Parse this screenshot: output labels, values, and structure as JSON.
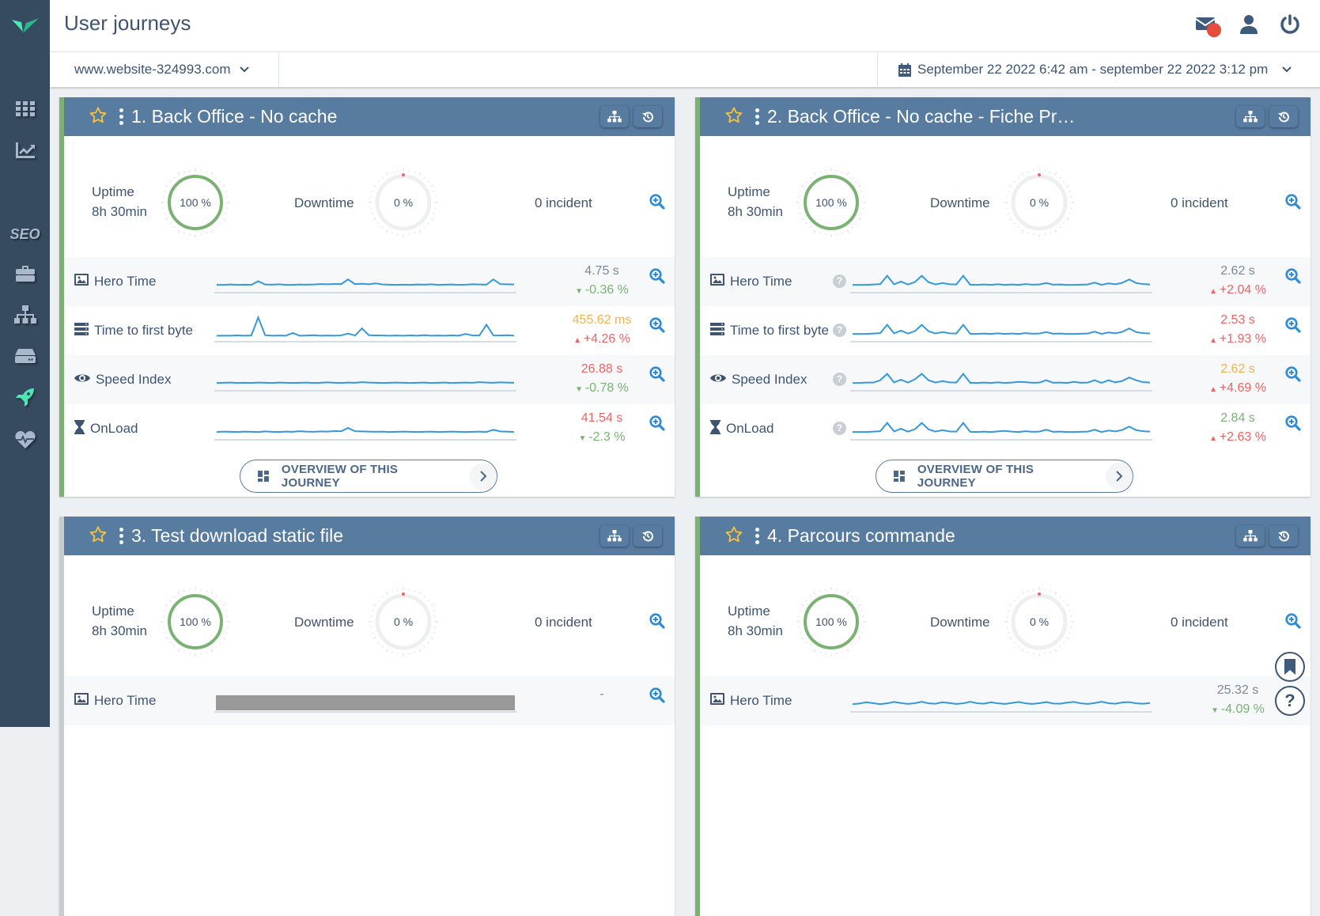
{
  "header": {
    "title": "User journeys",
    "icons": [
      "mail-icon",
      "user-icon",
      "power-icon"
    ],
    "notification_dot_color": "#e74c3c"
  },
  "subbar": {
    "site": "www.website-324993.com",
    "date_range": "September 22 2022 6:42 am - september 22 2022 3:12 pm"
  },
  "sidebar": {
    "items": [
      "grid-icon",
      "chart-icon",
      "SEO",
      "briefcase-icon",
      "sitemap-icon",
      "server-icon",
      "rocket-icon",
      "heartbeat-icon"
    ],
    "active": "rocket-icon",
    "active_color": "#4de8b5"
  },
  "colors": {
    "good": "#7bb274",
    "bad": "#f06363",
    "warn": "#f5b150",
    "neutral": "#7d8896",
    "header": "#587ba0"
  },
  "labels": {
    "uptime": "Uptime",
    "downtime": "Downtime",
    "overview": "OVERVIEW OF THIS JOURNEY"
  },
  "cards": [
    {
      "title": "1. Back Office - No cache",
      "status": "good",
      "uptime_duration": "8h 30min",
      "uptime_pct": "100 %",
      "downtime_pct": "0 %",
      "incidents": "0 incident",
      "overview": true,
      "help": false,
      "metrics": [
        {
          "icon": "image-icon",
          "label": "Hero Time",
          "value": "4.75 s",
          "value_status": "neutral",
          "change": "-0.36 %",
          "trend": "down",
          "change_status": "good",
          "spark": [
            3,
            3,
            3.2,
            3,
            3.1,
            3,
            5,
            3.2,
            3.1,
            3.3,
            3,
            3,
            3.2,
            3.1,
            3.2,
            3.4,
            3.3,
            3.5,
            3.4,
            6,
            3.4,
            3.6,
            3.3,
            3.8,
            3.2,
            3.1,
            3,
            3.1,
            3,
            3.2,
            3.1,
            3.3,
            3,
            3.1,
            3.2,
            3,
            3.1,
            3.3,
            3.2,
            3.1,
            6,
            3.4,
            3.3,
            3.2
          ]
        },
        {
          "icon": "server-icon",
          "label": "Time to first byte",
          "value": "455.62 ms",
          "value_status": "warn",
          "change": "+4.26 %",
          "trend": "up",
          "change_status": "bad",
          "spark": [
            2,
            2,
            2,
            2.2,
            2,
            2.1,
            12,
            2.3,
            2,
            2.1,
            2,
            3.5,
            2,
            2.1,
            2.3,
            2,
            2.1,
            2,
            2.2,
            3.2,
            2.1,
            6,
            2.3,
            2.2,
            2.1,
            2,
            2.1,
            2,
            2.2,
            2,
            2.3,
            2,
            2.1,
            2,
            2.2,
            2,
            3,
            2.1,
            2.2,
            8,
            2.2,
            2.1,
            2.3,
            2
          ]
        },
        {
          "icon": "eye-icon",
          "label": "Speed Index",
          "value": "26.88 s",
          "value_status": "bad",
          "change": "-0.78 %",
          "trend": "down",
          "change_status": "good",
          "spark": [
            3,
            3.1,
            3.2,
            3,
            3.1,
            3,
            3.2,
            3.1,
            3,
            3.2,
            3.1,
            3,
            3.1,
            3.2,
            3,
            3.1,
            3.3,
            3.1,
            3,
            3.2,
            3.1,
            3.4,
            3.2,
            3.1,
            3,
            3.1,
            3.2,
            3.1,
            3,
            3.1,
            3.2,
            3,
            3.1,
            3.2,
            3,
            3.1,
            3.2,
            3.1,
            3.4,
            3.2,
            3.1,
            3.3,
            3.2,
            3.1
          ]
        },
        {
          "icon": "hourglass-icon",
          "label": "OnLoad",
          "value": "41.54 s",
          "value_status": "bad",
          "change": "-2.3 %",
          "trend": "down",
          "change_status": "good",
          "spark": [
            3,
            3.2,
            3.1,
            3,
            3.2,
            3.1,
            3,
            3.3,
            3.1,
            3,
            3.2,
            3.1,
            3.4,
            3.2,
            3.1,
            3.3,
            3.2,
            3.5,
            3.4,
            5.2,
            3.4,
            3.3,
            3.2,
            3.1,
            3.2,
            3,
            3.1,
            3.2,
            3.1,
            3,
            3.1,
            3.2,
            3,
            3.1,
            3.2,
            3.1,
            3,
            3.1,
            3.2,
            3,
            4.2,
            3.3,
            3.2,
            3
          ]
        }
      ]
    },
    {
      "title": "2. Back Office - No cache - Fiche Pr…",
      "status": "good",
      "uptime_duration": "8h 30min",
      "uptime_pct": "100 %",
      "downtime_pct": "0 %",
      "incidents": "0 incident",
      "overview": true,
      "help": true,
      "metrics": [
        {
          "icon": "image-icon",
          "label": "Hero Time",
          "value": "2.62 s",
          "value_status": "neutral",
          "change": "+2.04 %",
          "trend": "up",
          "change_status": "bad",
          "spark": [
            3,
            3,
            3,
            3.2,
            3.4,
            8,
            3.3,
            4.8,
            3.2,
            4.5,
            8,
            4.4,
            3.2,
            4,
            3.3,
            3.2,
            8,
            3.1,
            3,
            3.2,
            3,
            3.3,
            3,
            3.2,
            3,
            3.4,
            3.1,
            3.2,
            4,
            3.1,
            3.2,
            3,
            3,
            3.1,
            3.2,
            4.2,
            3,
            3.8,
            3.3,
            4.1,
            6,
            4,
            3.4,
            3.2
          ]
        },
        {
          "icon": "server-icon",
          "label": "Time to first byte",
          "value": "2.53 s",
          "value_status": "bad",
          "change": "+1.93 %",
          "trend": "up",
          "change_status": "bad",
          "spark": [
            3,
            3,
            3,
            3.2,
            3.4,
            8,
            3.3,
            4.8,
            3.2,
            4.5,
            8,
            4.4,
            3.2,
            4,
            3.3,
            3.2,
            8,
            3.1,
            3,
            3.2,
            3,
            3.3,
            3,
            3.2,
            3,
            3.4,
            3.1,
            3.2,
            4,
            3.1,
            3.2,
            3,
            3,
            3.1,
            3.2,
            4.2,
            3,
            3.8,
            3.3,
            4.1,
            6,
            4,
            3.4,
            3.2
          ]
        },
        {
          "icon": "eye-icon",
          "label": "Speed Index",
          "value": "2.62 s",
          "value_status": "warn",
          "change": "+4.69 %",
          "trend": "up",
          "change_status": "bad",
          "spark": [
            3,
            3,
            3.2,
            3.2,
            4.5,
            8,
            3.3,
            4.8,
            3.2,
            5,
            8,
            4.4,
            3.2,
            4,
            3.3,
            3.2,
            8,
            3.1,
            3,
            3.2,
            3,
            3.3,
            3,
            3.2,
            3.6,
            3.4,
            3.1,
            3.2,
            4.5,
            3.1,
            3.2,
            3,
            3.6,
            3.1,
            3.2,
            4.5,
            3,
            4.5,
            3.3,
            4.1,
            6,
            4.5,
            3.4,
            3.2
          ]
        },
        {
          "icon": "hourglass-icon",
          "label": "OnLoad",
          "value": "2.84 s",
          "value_status": "good",
          "change": "+2.63 %",
          "trend": "up",
          "change_status": "bad",
          "spark": [
            3,
            3,
            3,
            3.2,
            3.4,
            8,
            3.3,
            4.8,
            3.2,
            4.5,
            8,
            4.4,
            3.2,
            4,
            3.3,
            3.2,
            8,
            3.1,
            3,
            3.2,
            3,
            3.3,
            3.6,
            3.2,
            3,
            3.4,
            3.1,
            3.2,
            4.2,
            3.1,
            3.2,
            3,
            3,
            3.1,
            3.2,
            4.2,
            3,
            3.8,
            3.3,
            4.1,
            6,
            4,
            3.4,
            3.2
          ]
        }
      ]
    },
    {
      "title": "3. Test download static file",
      "status": "none",
      "uptime_duration": "8h 30min",
      "uptime_pct": "100 %",
      "downtime_pct": "0 %",
      "incidents": "0 incident",
      "overview": false,
      "help": false,
      "metrics": [
        {
          "icon": "image-icon",
          "label": "Hero Time",
          "value": "-",
          "value_status": "neutral",
          "change": "",
          "trend": "",
          "change_status": "neutral",
          "spark": null
        }
      ]
    },
    {
      "title": "4. Parcours commande",
      "status": "good",
      "uptime_duration": "8h 30min",
      "uptime_pct": "100 %",
      "downtime_pct": "0 %",
      "incidents": "0 incident",
      "overview": false,
      "help": false,
      "metrics": [
        {
          "icon": "image-icon",
          "label": "Hero Time",
          "value": "25.32 s",
          "value_status": "neutral",
          "change": "-4.09 %",
          "trend": "down",
          "change_status": "good",
          "spark": [
            3,
            3.3,
            4,
            3.5,
            3,
            3.4,
            4.2,
            3.6,
            3.1,
            3.5,
            4.3,
            3.4,
            3.2,
            4,
            3.6,
            3.1,
            3.4,
            4.3,
            3.5,
            3.2,
            4,
            3.4,
            3.1,
            3.6,
            4.2,
            3.4,
            3.1,
            3.5,
            4.1,
            3.3,
            3.2,
            3.8,
            4.2,
            3.4,
            3.1,
            3.6,
            4.3,
            3.5,
            3.2,
            3.9,
            4.1,
            3.4,
            3.2,
            3.6
          ]
        }
      ]
    }
  ],
  "floating": {
    "bookmark": "bookmark-icon",
    "help": "?"
  }
}
